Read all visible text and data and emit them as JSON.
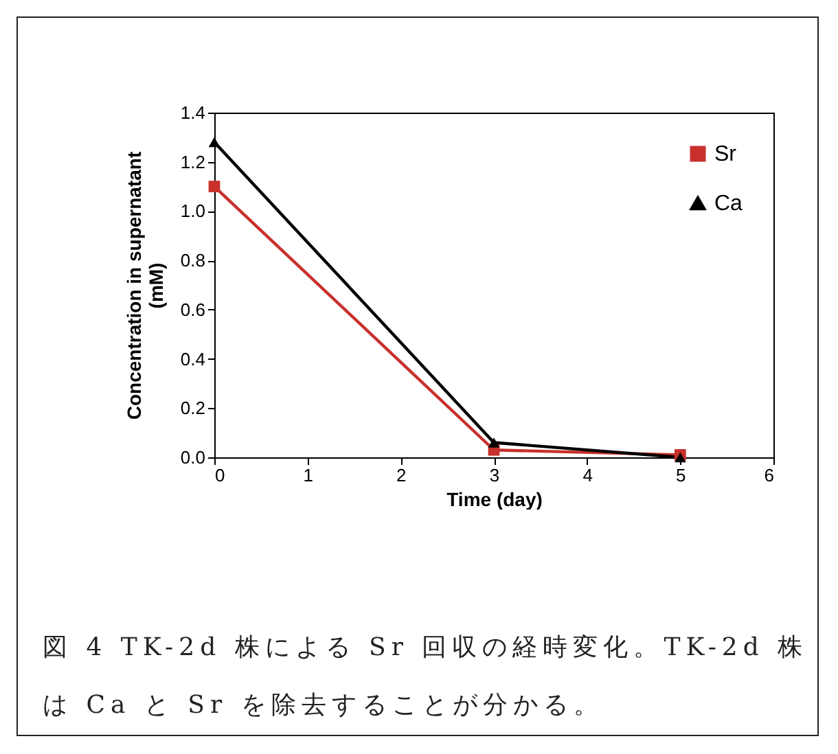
{
  "chart_data": {
    "type": "line",
    "xlabel": "Time (day)",
    "ylabel": "Concentration in supernatant (mM)",
    "xlim": [
      0,
      6
    ],
    "xticks": [
      0,
      1,
      2,
      3,
      4,
      5,
      6
    ],
    "ylim": [
      0,
      1.4
    ],
    "yticks": [
      {
        "value": 0,
        "label": "0.0"
      },
      {
        "value": 0.2,
        "label": "0.2"
      },
      {
        "value": 0.4,
        "label": "0.4"
      },
      {
        "value": 0.6,
        "label": "0.6"
      },
      {
        "value": 0.8,
        "label": "0.8"
      },
      {
        "value": 1,
        "label": "1.0"
      },
      {
        "value": 1.2,
        "label": "1.2"
      },
      {
        "value": 1.4,
        "label": "1.4"
      }
    ],
    "x": [
      0,
      3,
      5
    ],
    "series": [
      {
        "name": "Sr",
        "color": "#c8302c",
        "marker": "square",
        "values": [
          1.1,
          0.03,
          0.01
        ]
      },
      {
        "name": "Ca",
        "color": "#000000",
        "marker": "triangle",
        "values": [
          1.28,
          0.06,
          0.0
        ]
      }
    ],
    "grid": false,
    "legend": "top right",
    "line_style": "solid",
    "annotations": [
      "図 4 TK-2d 株による Sr 回収の経時変化。TK-2d 株は Ca と Sr を除去することが分かる。"
    ]
  }
}
